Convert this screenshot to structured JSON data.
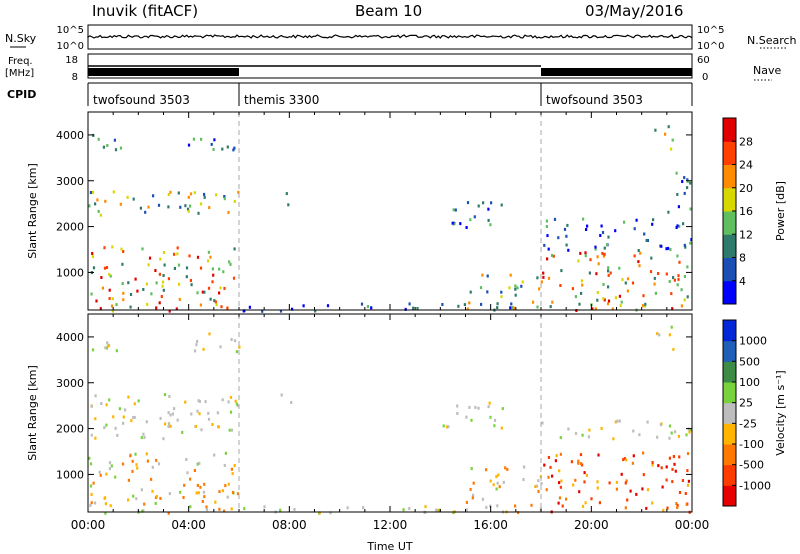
{
  "header": {
    "station": "Inuvik  (fitACF)",
    "beam": "Beam 10",
    "date": "03/May/2016"
  },
  "status_panels": {
    "nsky": {
      "label": "N.Sky",
      "ticks_left": [
        "10^5",
        "10^0"
      ],
      "ticks_right": [
        "10^5",
        "10^0"
      ],
      "right_label": "N.Search"
    },
    "freq": {
      "label_line1": "Freq.",
      "label_line2": "[MHz]",
      "ticks_left": [
        "18",
        "8"
      ],
      "ticks_right": [
        "60",
        "0"
      ],
      "right_label": "Nave"
    },
    "cpid": {
      "label": "CPID",
      "segments": [
        {
          "name": "twofsound 3503",
          "start_hour": 0
        },
        {
          "name": "themis 3300",
          "start_hour": 6
        },
        {
          "name": "twofsound 3503",
          "start_hour": 18
        }
      ]
    }
  },
  "chart_data": [
    {
      "type": "heatmap",
      "panel": "power",
      "ylabel": "Slant Range [km]",
      "yticks": [
        "1000",
        "2000",
        "3000",
        "4000"
      ],
      "ylim": [
        180,
        4500
      ],
      "xlim_hours": [
        0,
        24
      ],
      "colorbar_label": "Power [dB]",
      "colorbar_ticks": [
        "4",
        "8",
        "12",
        "16",
        "20",
        "24",
        "28"
      ],
      "colorbar_colors": [
        "#0000ff",
        "#1a4fb5",
        "#2f7a6a",
        "#5fbf5f",
        "#d8d800",
        "#ff8c00",
        "#ff4000",
        "#e00000"
      ],
      "mode_boundaries_hours": [
        6,
        18
      ],
      "echo_regions": [
        {
          "t0": 0.0,
          "t1": 6.0,
          "r0": 180,
          "r1": 1600,
          "level": "high"
        },
        {
          "t0": 0.0,
          "t1": 6.0,
          "r0": 2200,
          "r1": 2800,
          "level": "medium"
        },
        {
          "t0": 0.0,
          "t1": 1.5,
          "r0": 3700,
          "r1": 4100,
          "level": "medium"
        },
        {
          "t0": 3.8,
          "t1": 6.0,
          "r0": 3700,
          "r1": 4100,
          "level": "low"
        },
        {
          "t0": 7.5,
          "t1": 8.2,
          "r0": 2500,
          "r1": 2800,
          "level": "low"
        },
        {
          "t0": 6.0,
          "t1": 18.0,
          "r0": 180,
          "r1": 350,
          "level": "low"
        },
        {
          "t0": 14.0,
          "t1": 16.5,
          "r0": 2000,
          "r1": 2600,
          "level": "low"
        },
        {
          "t0": 15.0,
          "t1": 18.0,
          "r0": 200,
          "r1": 1000,
          "level": "medium"
        },
        {
          "t0": 18.0,
          "t1": 24.0,
          "r0": 200,
          "r1": 1500,
          "level": "high"
        },
        {
          "t0": 18.0,
          "t1": 24.0,
          "r0": 1500,
          "r1": 2200,
          "level": "low"
        },
        {
          "t0": 22.5,
          "t1": 23.3,
          "r0": 3700,
          "r1": 4300,
          "level": "medium"
        },
        {
          "t0": 23.0,
          "t1": 24.0,
          "r0": 2200,
          "r1": 3300,
          "level": "low"
        }
      ]
    },
    {
      "type": "heatmap",
      "panel": "velocity",
      "ylabel": "Slant Range [km]",
      "yticks": [
        "1000",
        "2000",
        "3000",
        "4000"
      ],
      "ylim": [
        180,
        4500
      ],
      "xlim_hours": [
        0,
        24
      ],
      "xticks": [
        "00:00",
        "04:00",
        "08:00",
        "12:00",
        "16:00",
        "20:00",
        "00:00"
      ],
      "xlabel": "Time UT",
      "colorbar_label": "Velocity  [m s⁻¹]",
      "colorbar_ticks": [
        "1000",
        "500",
        "100",
        "25",
        "-25",
        "-100",
        "-500",
        "-1000"
      ],
      "colorbar_colors": [
        "#0028d8",
        "#1f5fb8",
        "#3c8c46",
        "#78d23c",
        "#bdbdbd",
        "#ffb400",
        "#ff7800",
        "#ff3c00",
        "#e60000"
      ],
      "mode_boundaries_hours": [
        6,
        18
      ],
      "echo_regions": [
        {
          "t0": 0.0,
          "t1": 6.0,
          "r0": 180,
          "r1": 1500,
          "level": "neg"
        },
        {
          "t0": 0.0,
          "t1": 6.0,
          "r0": 1800,
          "r1": 2800,
          "level": "zero"
        },
        {
          "t0": 0.0,
          "t1": 1.5,
          "r0": 3700,
          "r1": 4100,
          "level": "zero"
        },
        {
          "t0": 3.8,
          "t1": 6.0,
          "r0": 3700,
          "r1": 4100,
          "level": "zero"
        },
        {
          "t0": 7.5,
          "t1": 8.2,
          "r0": 2500,
          "r1": 2800,
          "level": "zero"
        },
        {
          "t0": 6.0,
          "t1": 18.0,
          "r0": 180,
          "r1": 350,
          "level": "zero"
        },
        {
          "t0": 14.0,
          "t1": 16.5,
          "r0": 2000,
          "r1": 2600,
          "level": "zero"
        },
        {
          "t0": 15.0,
          "t1": 18.0,
          "r0": 200,
          "r1": 1200,
          "level": "neg"
        },
        {
          "t0": 18.0,
          "t1": 24.0,
          "r0": 200,
          "r1": 1500,
          "level": "strongneg"
        },
        {
          "t0": 18.0,
          "t1": 24.0,
          "r0": 1800,
          "r1": 2200,
          "level": "zero"
        },
        {
          "t0": 22.5,
          "t1": 23.3,
          "r0": 3700,
          "r1": 4300,
          "level": "zero"
        }
      ]
    }
  ]
}
